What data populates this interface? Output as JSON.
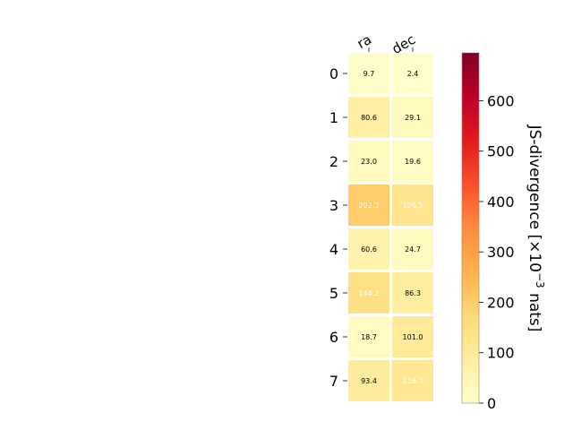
{
  "chart_data": {
    "type": "heatmap",
    "title": "",
    "columns": [
      "ra",
      "dec"
    ],
    "rows": [
      "0",
      "1",
      "2",
      "3",
      "4",
      "5",
      "6",
      "7"
    ],
    "values": [
      [
        9.7,
        2.4
      ],
      [
        80.6,
        29.1
      ],
      [
        23.0,
        19.6
      ],
      [
        202.3,
        126.5
      ],
      [
        60.6,
        24.7
      ],
      [
        144.2,
        86.3
      ],
      [
        18.7,
        101.0
      ],
      [
        93.4,
        116.3
      ]
    ],
    "cell_labels": [
      [
        "9.7",
        "2.4"
      ],
      [
        "80.6",
        "29.1"
      ],
      [
        "23.0",
        "19.6"
      ],
      [
        "202.3",
        "126.5"
      ],
      [
        "60.6",
        "24.7"
      ],
      [
        "144.2",
        "86.3"
      ],
      [
        "18.7",
        "101.0"
      ],
      [
        "93.4",
        "116.3"
      ]
    ],
    "colorbar": {
      "label": "JS-divergence [×10",
      "label_sup": "−3",
      "label_end": " nats]",
      "range": [
        0,
        695
      ],
      "ticks": [
        0,
        100,
        200,
        300,
        400,
        500,
        600
      ],
      "tick_labels": [
        "0",
        "100",
        "200",
        "300",
        "400",
        "500",
        "600"
      ],
      "colormap": "YlOrRd"
    },
    "colors": [
      "#ffffcc",
      "#ffeda0",
      "#fed976",
      "#feb24c",
      "#fd8d3c",
      "#fc4e2a",
      "#e31a1c",
      "#bd0026",
      "#800026"
    ]
  }
}
